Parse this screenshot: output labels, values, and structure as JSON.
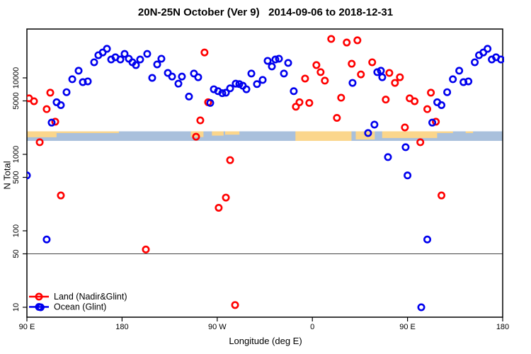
{
  "title": "20N-25N October (Ver 9)   2014-09-06 to 2018-12-31",
  "chart_data": {
    "type": "scatter",
    "title": "20N-25N October (Ver 9)   2014-09-06 to 2018-12-31",
    "xlabel": "Longitude (deg E)",
    "ylabel": "N Total",
    "x_axis": {
      "span_deg": 450,
      "tick_positions_deg": [
        0,
        90,
        180,
        270,
        360,
        450
      ],
      "tick_labels": [
        "90 E",
        "180",
        "90 W",
        "0",
        "90 E",
        "180"
      ],
      "wrap_repeat_below_deg": 90
    },
    "y_axis": {
      "scale": "log",
      "ticks": [
        10,
        50,
        100,
        500,
        1000,
        5000,
        10000
      ],
      "range_approx": [
        7.5,
        43000
      ]
    },
    "reference_line_n": 50,
    "map_band": {
      "n_top": 2000,
      "n_bottom": 1500,
      "ocean_color": "#a9c0dc",
      "land_color": "#fbd68c",
      "land_segments": [
        {
          "from": 0,
          "to": 28,
          "frac": 0.62
        },
        {
          "from": 27,
          "to": 87,
          "frac": 0.18
        },
        {
          "from": 155,
          "to": 167,
          "frac": 0.6
        },
        {
          "from": 175,
          "to": 186,
          "frac": 0.45
        },
        {
          "from": 187.5,
          "to": 201,
          "frac": 0.35
        },
        {
          "from": 254,
          "to": 307,
          "frac": 1.0
        },
        {
          "from": 311,
          "to": 329,
          "frac": 0.85
        },
        {
          "from": 336,
          "to": 388,
          "frac": 0.7
        },
        {
          "from": 388,
          "to": 403,
          "frac": 0.18
        },
        {
          "from": 415,
          "to": 422,
          "frac": 0.18
        }
      ]
    },
    "legend": [
      {
        "label": "Land (Nadir&Glint)",
        "color": "#ff0000"
      },
      {
        "label": "Ocean (Glint)",
        "color": "#0000ee"
      }
    ],
    "series": [
      {
        "name": "Land (Nadir&Glint)",
        "color": "#ff0000",
        "points": [
          [
            2.0,
            5400
          ],
          [
            6.7,
            4950
          ],
          [
            12.1,
            1440
          ],
          [
            18.7,
            3900
          ],
          [
            22.1,
            6400
          ],
          [
            26.8,
            2670
          ],
          [
            32.1,
            290
          ],
          [
            112.5,
            57
          ],
          [
            160.0,
            1700
          ],
          [
            164.0,
            2780
          ],
          [
            168.0,
            21500
          ],
          [
            171.4,
            4800
          ],
          [
            181.4,
            200
          ],
          [
            188.2,
            272
          ],
          [
            192.2,
            840
          ],
          [
            196.9,
            10.7
          ],
          [
            254.4,
            4200
          ],
          [
            257.8,
            4800
          ],
          [
            263.1,
            9800
          ],
          [
            267.1,
            4700
          ],
          [
            273.8,
            14700
          ],
          [
            277.8,
            11900
          ],
          [
            281.8,
            9200
          ],
          [
            287.8,
            32300
          ],
          [
            293.2,
            3000
          ],
          [
            297.2,
            5500
          ],
          [
            302.5,
            29000
          ],
          [
            307.2,
            15300
          ],
          [
            312.6,
            31000
          ],
          [
            315.9,
            11100
          ],
          [
            326.6,
            16000
          ],
          [
            339.4,
            5200
          ],
          [
            342.8,
            11600
          ],
          [
            348.1,
            8600
          ],
          [
            352.8,
            10200
          ],
          [
            357.5,
            2250
          ]
        ]
      },
      {
        "name": "Ocean (Glint)",
        "color": "#0000ee",
        "points": [
          [
            0.0,
            530
          ],
          [
            13.0,
            10
          ],
          [
            18.7,
            77
          ],
          [
            23.4,
            2600
          ],
          [
            28.1,
            4800
          ],
          [
            32.1,
            4400
          ],
          [
            37.5,
            6500
          ],
          [
            42.9,
            9600
          ],
          [
            48.9,
            12400
          ],
          [
            52.9,
            8800
          ],
          [
            57.6,
            9000
          ],
          [
            63.6,
            16000
          ],
          [
            67.6,
            19800
          ],
          [
            71.7,
            21500
          ],
          [
            75.7,
            24000
          ],
          [
            79.7,
            17400
          ],
          [
            83.7,
            18600
          ],
          [
            88.4,
            17400
          ],
          [
            92.4,
            20600
          ],
          [
            96.4,
            17800
          ],
          [
            99.8,
            16000
          ],
          [
            103.1,
            14700
          ],
          [
            107.1,
            17400
          ],
          [
            113.8,
            20600
          ],
          [
            118.5,
            10000
          ],
          [
            123.2,
            15000
          ],
          [
            127.2,
            17800
          ],
          [
            133.3,
            11600
          ],
          [
            137.3,
            10400
          ],
          [
            143.3,
            8400
          ],
          [
            146.6,
            10400
          ],
          [
            153.3,
            5700
          ],
          [
            158.0,
            11400
          ],
          [
            162.0,
            10200
          ],
          [
            173.4,
            4700
          ],
          [
            176.8,
            7100
          ],
          [
            180.8,
            6700
          ],
          [
            184.8,
            6300
          ],
          [
            188.2,
            6400
          ],
          [
            192.2,
            7300
          ],
          [
            197.5,
            8400
          ],
          [
            200.9,
            8300
          ],
          [
            204.2,
            7900
          ],
          [
            207.6,
            7100
          ],
          [
            212.3,
            11400
          ],
          [
            217.6,
            8300
          ],
          [
            223.0,
            9400
          ],
          [
            227.7,
            16700
          ],
          [
            231.7,
            14100
          ],
          [
            235.0,
            17400
          ],
          [
            238.4,
            17800
          ],
          [
            243.1,
            11400
          ],
          [
            247.1,
            15700
          ],
          [
            252.4,
            6700
          ],
          [
            308.0,
            8600
          ],
          [
            322.7,
            1900
          ],
          [
            328.7,
            2450
          ],
          [
            331.4,
            11900
          ],
          [
            334.8,
            12400
          ],
          [
            336.1,
            10200
          ],
          [
            341.5,
            920
          ],
          [
            358.2,
            1240
          ]
        ]
      }
    ]
  },
  "colors": {
    "land": "#ff0000",
    "ocean": "#0000ee",
    "band_ocean": "#a9c0dc",
    "band_land": "#fbd68c",
    "axis": "#000000",
    "reference_line": "#444444"
  }
}
